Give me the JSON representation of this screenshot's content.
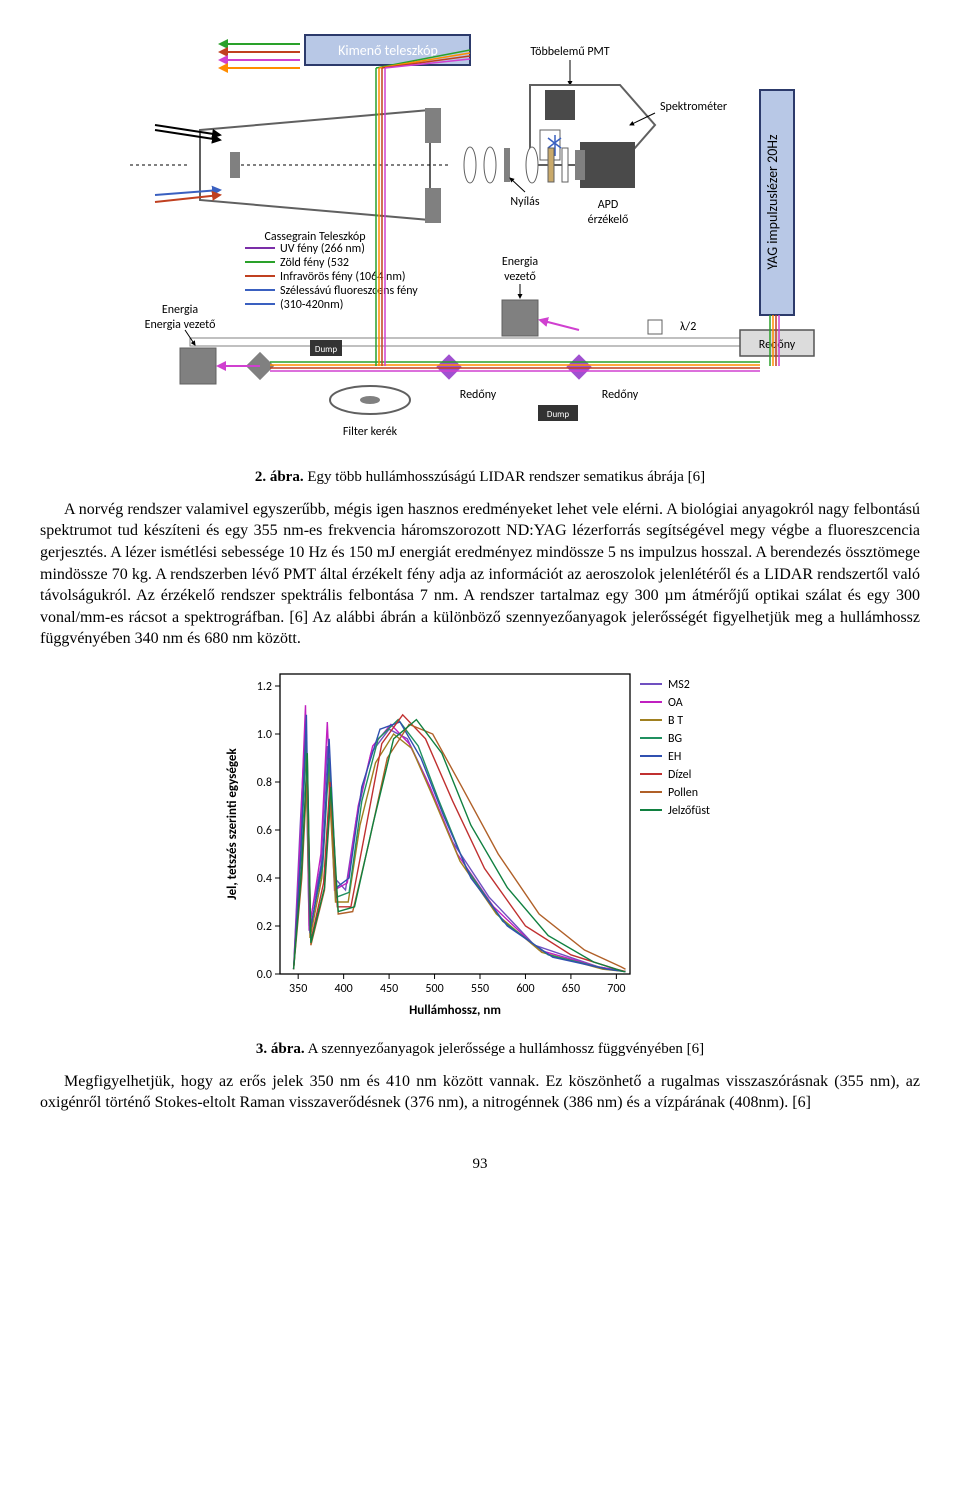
{
  "diagram": {
    "type": "schematic",
    "background": "#ffffff",
    "outer_frame_color": "#808080",
    "boxes": {
      "kimeno_teleszkop": {
        "label": "Kimenő teleszkóp",
        "fill": "#b8c8e6",
        "border": "#2c3a6b",
        "text_color": "#ffffff"
      },
      "yag_laser": {
        "label": "YAG impulzuslézer 20Hz",
        "fill": "#b8c8e6",
        "border": "#2c3a6b",
        "text_color": "#000000"
      },
      "redony_right": {
        "label": "Redőny",
        "fill": "#dcdcdc",
        "border": "#555555"
      }
    },
    "labels": {
      "tobbelemu_pmt": "Többelemű PMT",
      "spektrometer": "Spektrométer",
      "cassegrain": "Cassegrain Teleszkóp",
      "nyilas": "Nyílás",
      "apd": "APD érzékelő",
      "filter_kerek": "Filter kerék",
      "energia_vezeto1": "Energia vezető",
      "energia_vezeto2": "Energia vezető",
      "redony_mid": "Redőny",
      "redony_mid2": "Redőny",
      "lambda_half": "λ/2",
      "dump1": "Dump",
      "dump2": "Dump"
    },
    "legend": [
      {
        "label": "UV fény (266 nm)",
        "color": "#7b2ea8"
      },
      {
        "label": "Zöld fény (532",
        "color": "#2aa12a"
      },
      {
        "label": "Infravörös fény (1064 nm)",
        "color": "#c04020"
      },
      {
        "label": "Szélessávú fluoreszcens fény",
        "color": "#3a60c0"
      },
      {
        "label": "(310-420nm)",
        "color": "#3a60c0"
      }
    ],
    "beam_colors": {
      "uv": "#7b2ea8",
      "green": "#2aa12a",
      "ir": "#c04020",
      "fluor": "#3a60c0",
      "magenta": "#d040d0",
      "orange": "#ff8c00"
    },
    "component_gray": "#808080",
    "component_dark": "#4a4a4a",
    "component_outline": "#606060"
  },
  "caption1": {
    "num": "2. ábra.",
    "text": " Egy több hullámhosszúságú LIDAR rendszer sematikus ábrája [6]"
  },
  "para1": "A norvég rendszer valamivel egyszerűbb, mégis igen hasznos eredményeket lehet vele elérni. A biológiai anyagokról nagy felbontású spektrumot tud készíteni és egy 355 nm-es frekvencia háromszorozott ND:YAG lézerforrás segítségével megy végbe a fluoreszcencia gerjesztés. A lézer ismétlési sebessége 10 Hz és 150 mJ energiát eredményez mindössze 5 ns impulzus hosszal. A berendezés össztömege mindössze 70 kg. A rendszerben lévő PMT által érzékelt fény adja az információt az aeroszolok jelenlétéről és a LIDAR rendszertől való távolságukról. Az érzékelő rendszer spektrális felbontása 7 nm. A rendszer tartalmaz egy 300 µm átmérőjű optikai szálat és egy 300 vonal/mm-es rácsot a spektrográfban. [6] Az alábbi ábrán a különböző szennyezőanyagok jelerősségét figyelhetjük meg a hullámhossz függvényében 340 nm és 680 nm között.",
  "chart": {
    "type": "line",
    "background_color": "#ffffff",
    "axis_color": "#000000",
    "xlabel": "Hullámhossz, nm",
    "ylabel": "Jel, tetszés szerinti egységek",
    "label_fontsize": 13,
    "tick_fontsize": 12,
    "xlim": [
      330,
      715
    ],
    "ylim": [
      0.0,
      1.25
    ],
    "xticks": [
      350,
      400,
      450,
      500,
      550,
      600,
      650,
      700
    ],
    "yticks": [
      0.0,
      0.2,
      0.4,
      0.6,
      0.8,
      1.0,
      1.2
    ],
    "legend_pos": "right",
    "series": [
      {
        "name": "MS2",
        "color": "#7050c0"
      },
      {
        "name": "OA",
        "color": "#c020c0"
      },
      {
        "name": "B T",
        "color": "#a08020"
      },
      {
        "name": "BG",
        "color": "#209060"
      },
      {
        "name": "EH",
        "color": "#3050b0"
      },
      {
        "name": "Dízel",
        "color": "#c03030"
      },
      {
        "name": "Pollen",
        "color": "#b06028"
      },
      {
        "name": "Jelzőfüst",
        "color": "#108040"
      }
    ],
    "curves": {
      "MS2": [
        [
          345,
          0.02
        ],
        [
          352,
          0.6
        ],
        [
          358,
          1.05
        ],
        [
          362,
          0.2
        ],
        [
          375,
          0.45
        ],
        [
          382,
          0.95
        ],
        [
          390,
          0.4
        ],
        [
          402,
          0.35
        ],
        [
          414,
          0.65
        ],
        [
          430,
          0.92
        ],
        [
          450,
          1.02
        ],
        [
          470,
          0.98
        ],
        [
          490,
          0.82
        ],
        [
          520,
          0.55
        ],
        [
          560,
          0.32
        ],
        [
          610,
          0.12
        ],
        [
          680,
          0.03
        ],
        [
          710,
          0.01
        ]
      ],
      "OA": [
        [
          345,
          0.02
        ],
        [
          352,
          0.55
        ],
        [
          358,
          1.12
        ],
        [
          362,
          0.18
        ],
        [
          375,
          0.5
        ],
        [
          382,
          1.05
        ],
        [
          390,
          0.35
        ],
        [
          404,
          0.38
        ],
        [
          416,
          0.7
        ],
        [
          432,
          0.95
        ],
        [
          452,
          1.04
        ],
        [
          472,
          0.96
        ],
        [
          495,
          0.78
        ],
        [
          525,
          0.5
        ],
        [
          565,
          0.28
        ],
        [
          615,
          0.1
        ],
        [
          680,
          0.03
        ],
        [
          710,
          0.01
        ]
      ],
      "B T": [
        [
          345,
          0.02
        ],
        [
          353,
          0.5
        ],
        [
          358,
          0.98
        ],
        [
          363,
          0.15
        ],
        [
          376,
          0.4
        ],
        [
          383,
          0.85
        ],
        [
          391,
          0.3
        ],
        [
          405,
          0.3
        ],
        [
          418,
          0.62
        ],
        [
          435,
          0.88
        ],
        [
          455,
          1.0
        ],
        [
          475,
          0.94
        ],
        [
          498,
          0.74
        ],
        [
          528,
          0.47
        ],
        [
          568,
          0.25
        ],
        [
          618,
          0.09
        ],
        [
          685,
          0.02
        ],
        [
          710,
          0.01
        ]
      ],
      "BG": [
        [
          345,
          0.02
        ],
        [
          353,
          0.48
        ],
        [
          359,
          1.0
        ],
        [
          363,
          0.18
        ],
        [
          377,
          0.45
        ],
        [
          384,
          0.9
        ],
        [
          392,
          0.32
        ],
        [
          406,
          0.34
        ],
        [
          420,
          0.72
        ],
        [
          438,
          0.98
        ],
        [
          460,
          1.06
        ],
        [
          482,
          0.95
        ],
        [
          505,
          0.72
        ],
        [
          535,
          0.44
        ],
        [
          575,
          0.22
        ],
        [
          625,
          0.08
        ],
        [
          690,
          0.02
        ],
        [
          710,
          0.01
        ]
      ],
      "EH": [
        [
          345,
          0.02
        ],
        [
          353,
          0.52
        ],
        [
          359,
          1.08
        ],
        [
          363,
          0.17
        ],
        [
          377,
          0.48
        ],
        [
          384,
          0.98
        ],
        [
          392,
          0.36
        ],
        [
          406,
          0.4
        ],
        [
          420,
          0.78
        ],
        [
          440,
          1.02
        ],
        [
          462,
          1.05
        ],
        [
          485,
          0.9
        ],
        [
          510,
          0.66
        ],
        [
          540,
          0.4
        ],
        [
          580,
          0.2
        ],
        [
          630,
          0.07
        ],
        [
          690,
          0.02
        ],
        [
          710,
          0.01
        ]
      ],
      "Dízel": [
        [
          345,
          0.02
        ],
        [
          354,
          0.45
        ],
        [
          360,
          0.9
        ],
        [
          364,
          0.14
        ],
        [
          378,
          0.38
        ],
        [
          385,
          0.8
        ],
        [
          393,
          0.28
        ],
        [
          408,
          0.28
        ],
        [
          424,
          0.6
        ],
        [
          442,
          0.96
        ],
        [
          465,
          1.08
        ],
        [
          490,
          0.98
        ],
        [
          520,
          0.72
        ],
        [
          555,
          0.44
        ],
        [
          600,
          0.2
        ],
        [
          650,
          0.08
        ],
        [
          700,
          0.02
        ],
        [
          710,
          0.01
        ]
      ],
      "Pollen": [
        [
          345,
          0.02
        ],
        [
          354,
          0.4
        ],
        [
          360,
          0.85
        ],
        [
          364,
          0.12
        ],
        [
          379,
          0.35
        ],
        [
          386,
          0.75
        ],
        [
          394,
          0.25
        ],
        [
          410,
          0.26
        ],
        [
          428,
          0.55
        ],
        [
          448,
          0.9
        ],
        [
          472,
          1.04
        ],
        [
          498,
          1.0
        ],
        [
          530,
          0.78
        ],
        [
          570,
          0.5
        ],
        [
          615,
          0.25
        ],
        [
          665,
          0.1
        ],
        [
          705,
          0.03
        ],
        [
          710,
          0.02
        ]
      ],
      "Jelzőfüst": [
        [
          345,
          0.02
        ],
        [
          354,
          0.44
        ],
        [
          360,
          0.92
        ],
        [
          364,
          0.13
        ],
        [
          379,
          0.36
        ],
        [
          386,
          0.78
        ],
        [
          394,
          0.26
        ],
        [
          412,
          0.28
        ],
        [
          432,
          0.62
        ],
        [
          455,
          0.98
        ],
        [
          480,
          1.06
        ],
        [
          508,
          0.92
        ],
        [
          540,
          0.62
        ],
        [
          580,
          0.36
        ],
        [
          625,
          0.16
        ],
        [
          675,
          0.05
        ],
        [
          708,
          0.01
        ],
        [
          710,
          0.01
        ]
      ]
    }
  },
  "caption2": {
    "num": "3. ábra.",
    "text": " A szennyezőanyagok jelerőssége a hullámhossz függvényében [6]"
  },
  "para2": "Megfigyelhetjük, hogy az erős jelek 350 nm és 410 nm között vannak. Ez köszönhető a rugalmas visszaszórásnak (355 nm), az oxigénről történő Stokes-eltolt Raman visszaverődésnek (376 nm), a nitrogénnek (386 nm) és a vízpárának (408nm). [6]",
  "pagenum": "93"
}
